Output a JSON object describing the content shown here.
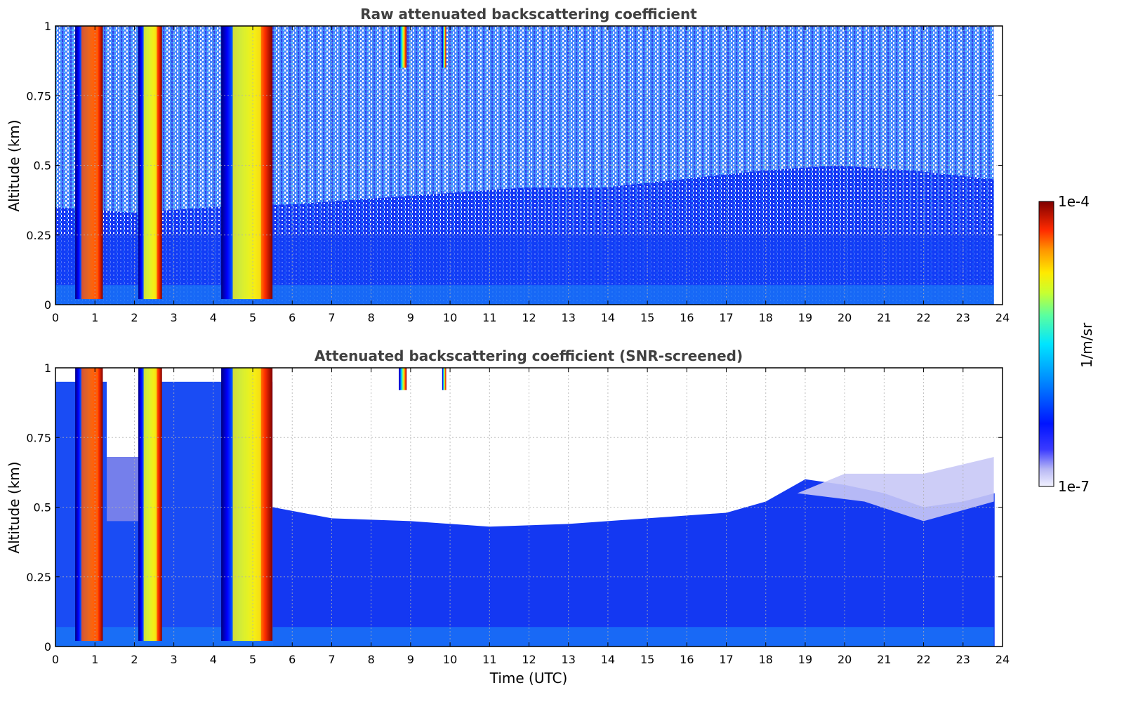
{
  "chart_data": [
    {
      "type": "heatmap",
      "title": "Raw attenuated backscattering coefficient",
      "xlabel": "",
      "ylabel": "Altitude (km)",
      "xlim": [
        0,
        24
      ],
      "ylim": [
        0,
        1
      ],
      "x_ticks": [
        "0",
        "1",
        "2",
        "3",
        "4",
        "5",
        "6",
        "7",
        "8",
        "9",
        "10",
        "11",
        "12",
        "13",
        "14",
        "15",
        "16",
        "17",
        "18",
        "19",
        "20",
        "21",
        "22",
        "23",
        "24"
      ],
      "y_ticks": [
        "0",
        "0.25",
        "0.5",
        "0.75",
        "1"
      ],
      "grid": true,
      "colormap": "jet",
      "screened": false,
      "strong_layers": [
        {
          "x_start": 0.5,
          "x_end": 1.2,
          "level": 0.9
        },
        {
          "x_start": 2.1,
          "x_end": 2.7,
          "level": 0.65
        },
        {
          "x_start": 4.2,
          "x_end": 5.5,
          "level": 0.62
        },
        {
          "x_start": 8.7,
          "x_end": 8.9,
          "level": 0.95
        },
        {
          "x_start": 9.8,
          "x_end": 9.9,
          "level": 0.85
        }
      ],
      "noise_top_boundary_km": [
        0.35,
        0.33,
        0.35,
        0.36,
        0.38,
        0.4,
        0.42,
        0.42,
        0.45,
        0.48,
        0.5,
        0.48,
        0.45
      ]
    },
    {
      "type": "heatmap",
      "title": "Attenuated backscattering coefficient (SNR-screened)",
      "xlabel": "Time (UTC)",
      "ylabel": "Altitude (km)",
      "xlim": [
        0,
        24
      ],
      "ylim": [
        0,
        1
      ],
      "x_ticks": [
        "0",
        "1",
        "2",
        "3",
        "4",
        "5",
        "6",
        "7",
        "8",
        "9",
        "10",
        "11",
        "12",
        "13",
        "14",
        "15",
        "16",
        "17",
        "18",
        "19",
        "20",
        "21",
        "22",
        "23",
        "24"
      ],
      "y_ticks": [
        "0",
        "0.25",
        "0.5",
        "0.75",
        "1"
      ],
      "grid": true,
      "colormap": "jet",
      "screened": true,
      "screen_top_km": [
        {
          "x": 5.5,
          "top": 0.5
        },
        {
          "x": 7,
          "top": 0.46
        },
        {
          "x": 9,
          "top": 0.45
        },
        {
          "x": 11,
          "top": 0.43
        },
        {
          "x": 13,
          "top": 0.44
        },
        {
          "x": 15,
          "top": 0.46
        },
        {
          "x": 17,
          "top": 0.48
        },
        {
          "x": 18,
          "top": 0.52
        },
        {
          "x": 19,
          "top": 0.6
        },
        {
          "x": 20,
          "top": 0.58
        },
        {
          "x": 21,
          "top": 0.55
        },
        {
          "x": 22,
          "top": 0.5
        },
        {
          "x": 23,
          "top": 0.52
        },
        {
          "x": 23.8,
          "top": 0.55
        }
      ]
    }
  ],
  "colorbar": {
    "label": "1/m/sr",
    "max_label": "1e-4",
    "min_label": "1e-7",
    "scale": "log"
  }
}
